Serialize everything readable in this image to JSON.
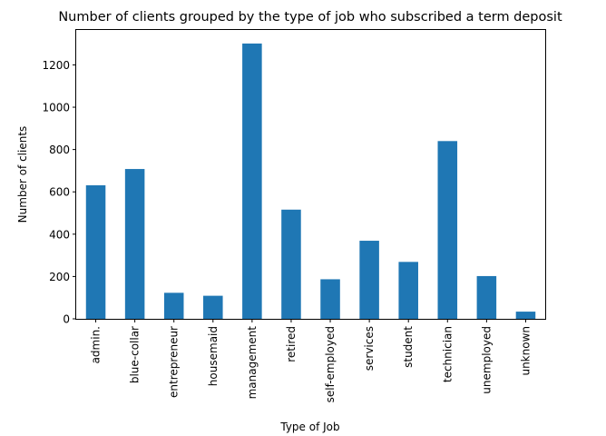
{
  "chart_data": {
    "type": "bar",
    "title": "Number of clients grouped by the type of job who subscribed a term deposit",
    "xlabel": "Type of Job",
    "ylabel": "Number of clients",
    "categories": [
      "admin.",
      "blue-collar",
      "entrepreneur",
      "housemaid",
      "management",
      "retired",
      "self-employed",
      "services",
      "student",
      "technician",
      "unemployed",
      "unknown"
    ],
    "values": [
      631,
      708,
      123,
      109,
      1301,
      516,
      187,
      369,
      269,
      840,
      202,
      34
    ],
    "ylim": [
      0,
      1365
    ],
    "yticks": [
      0,
      200,
      400,
      600,
      800,
      1000,
      1200
    ],
    "grid": false,
    "legend": "none",
    "bar_color": "#1f77b4"
  }
}
